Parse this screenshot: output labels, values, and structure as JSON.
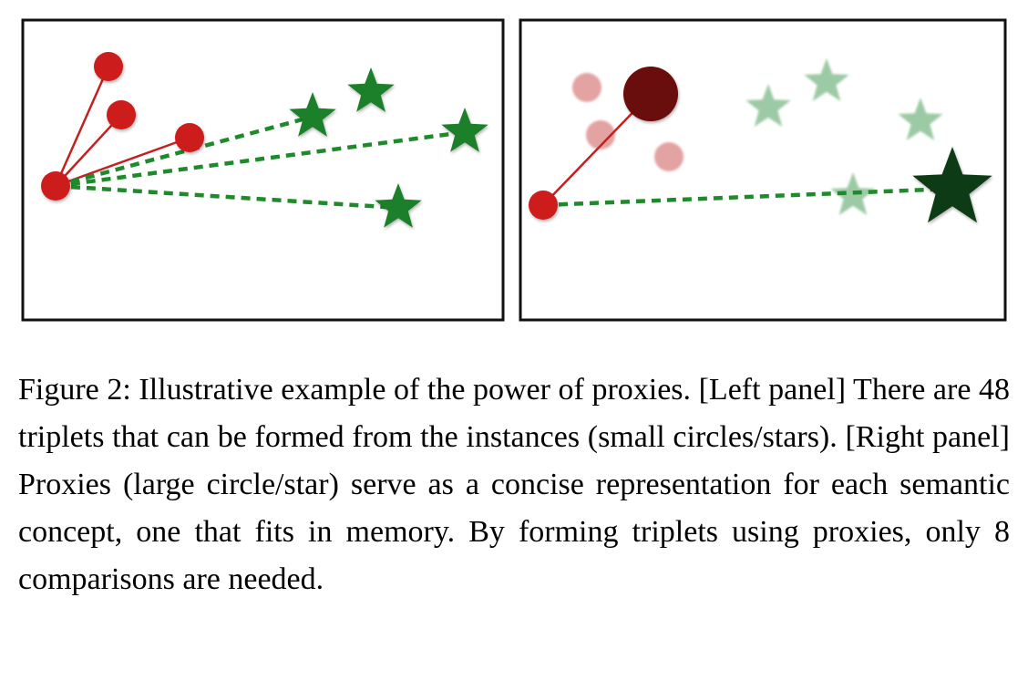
{
  "figure": {
    "colors": {
      "instance_circle": "#cc1d1d",
      "instance_circle_faded": "#e3a3a3",
      "proxy_circle": "#6b0708",
      "instance_star": "#1a7f2a",
      "instance_star_faded": "#9ccaa4",
      "proxy_star": "#0e3a12",
      "solid_link": "#c42020",
      "dashed_link": "#1f8a2c"
    }
  },
  "caption": {
    "text": "Figure 2: Illustrative example of the power of proxies. [Left panel] There are 48 triplets that can be formed from the instances (small circles/stars). [Right panel] Proxies (large circle/star) serve as a concise representation for each semantic concept, one that fits in memory. By forming triplets using proxies, only 8 comparisons are needed.",
    "lines": [
      "Figure 2: Illustrative example of the power of proxies. [Left",
      "panel] There are 48 triplets that can be formed from the in-",
      "stances (small circles/stars).  [Right panel] Proxies (large",
      "circle/star) serve as a concise representation for each se-",
      "mantic concept, one that fits in memory. By forming triplets",
      "using proxies, only 8 comparisons are needed."
    ]
  }
}
